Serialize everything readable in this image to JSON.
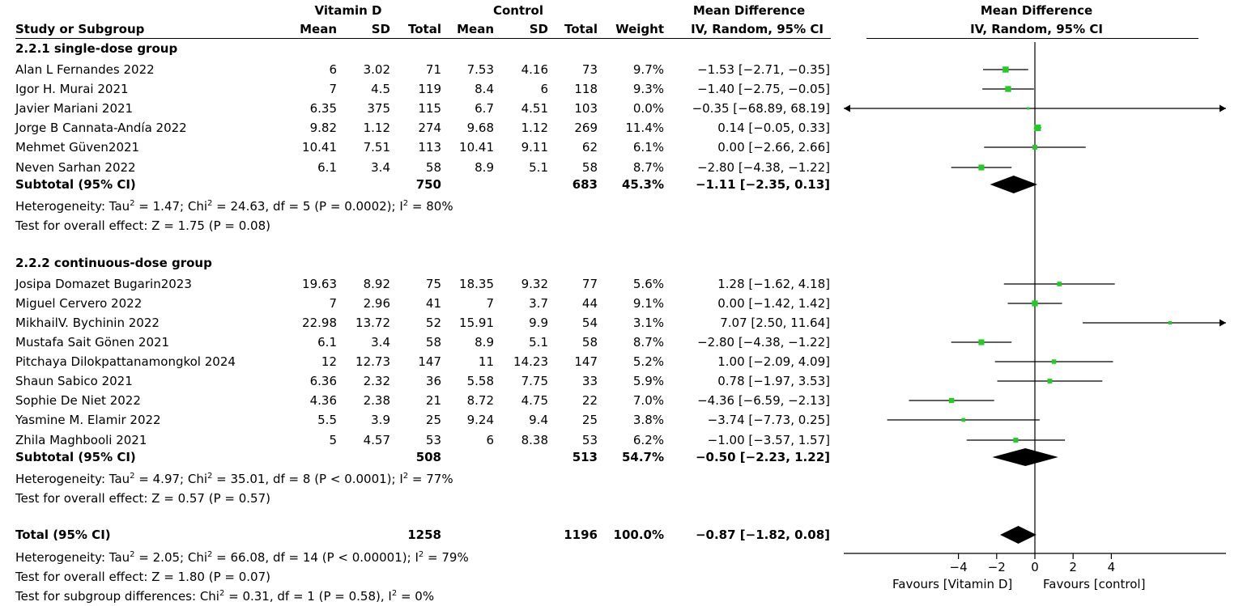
{
  "header": {
    "vitd": "Vitamin D",
    "control": "Control",
    "md_top": "Mean Difference",
    "md_bottom": "IV, Random, 95% CI",
    "plot_top": "Mean Difference",
    "plot_bottom": "IV, Random, 95% CI",
    "study": "Study or Subgroup",
    "mean1": "Mean",
    "sd1": "SD",
    "total1": "Total",
    "mean2": "Mean",
    "sd2": "SD",
    "total2": "Total",
    "weight": "Weight"
  },
  "groups": [
    {
      "title": "2.2.1 single-dose group",
      "studies": [
        {
          "name": "Alan L Fernandes 2022",
          "m1": "6",
          "sd1": "3.02",
          "n1": "71",
          "m2": "7.53",
          "sd2": "4.16",
          "n2": "73",
          "w": "9.7%",
          "ci": "−1.53 [−2.71, −0.35]"
        },
        {
          "name": "Igor H. Murai 2021",
          "m1": "7",
          "sd1": "4.5",
          "n1": "119",
          "m2": "8.4",
          "sd2": "6",
          "n2": "118",
          "w": "9.3%",
          "ci": "−1.40 [−2.75, −0.05]"
        },
        {
          "name": "Javier Mariani 2021",
          "m1": "6.35",
          "sd1": "375",
          "n1": "115",
          "m2": "6.7",
          "sd2": "4.51",
          "n2": "103",
          "w": "0.0%",
          "ci": "−0.35 [−68.89, 68.19]"
        },
        {
          "name": "Jorge B Cannata-Andía 2022",
          "m1": "9.82",
          "sd1": "1.12",
          "n1": "274",
          "m2": "9.68",
          "sd2": "1.12",
          "n2": "269",
          "w": "11.4%",
          "ci": "0.14 [−0.05, 0.33]"
        },
        {
          "name": "Mehmet Güven2021",
          "m1": "10.41",
          "sd1": "7.51",
          "n1": "113",
          "m2": "10.41",
          "sd2": "9.11",
          "n2": "62",
          "w": "6.1%",
          "ci": "0.00 [−2.66, 2.66]"
        },
        {
          "name": "Neven Sarhan 2022",
          "m1": "6.1",
          "sd1": "3.4",
          "n1": "58",
          "m2": "8.9",
          "sd2": "5.1",
          "n2": "58",
          "w": "8.7%",
          "ci": "−2.80 [−4.38, −1.22]"
        }
      ],
      "subtotal": {
        "label": "Subtotal (95% CI)",
        "n1": "750",
        "n2": "683",
        "w": "45.3%",
        "ci": "−1.11 [−2.35, 0.13]"
      },
      "het_pre": "Heterogeneity: Tau",
      "het_mid": " = 1.47; Chi",
      "het_mid2": " = 24.63, df = 5 (P = 0.0002); I",
      "het_end": " = 80%",
      "overall": "Test for overall effect: Z = 1.75 (P = 0.08)"
    },
    {
      "title": "2.2.2 continuous-dose group",
      "studies": [
        {
          "name": "Josipa Domazet Bugarin2023",
          "m1": "19.63",
          "sd1": "8.92",
          "n1": "75",
          "m2": "18.35",
          "sd2": "9.32",
          "n2": "77",
          "w": "5.6%",
          "ci": "1.28 [−1.62, 4.18]"
        },
        {
          "name": "Miguel Cervero 2022",
          "m1": "7",
          "sd1": "2.96",
          "n1": "41",
          "m2": "7",
          "sd2": "3.7",
          "n2": "44",
          "w": "9.1%",
          "ci": "0.00 [−1.42, 1.42]"
        },
        {
          "name": "MikhailV. Bychinin 2022",
          "m1": "22.98",
          "sd1": "13.72",
          "n1": "52",
          "m2": "15.91",
          "sd2": "9.9",
          "n2": "54",
          "w": "3.1%",
          "ci": "7.07 [2.50, 11.64]"
        },
        {
          "name": "Mustafa Sait Gönen 2021",
          "m1": "6.1",
          "sd1": "3.4",
          "n1": "58",
          "m2": "8.9",
          "sd2": "5.1",
          "n2": "58",
          "w": "8.7%",
          "ci": "−2.80 [−4.38, −1.22]"
        },
        {
          "name": "Pitchaya Dilokpattanamongkol 2024",
          "m1": "12",
          "sd1": "12.73",
          "n1": "147",
          "m2": "11",
          "sd2": "14.23",
          "n2": "147",
          "w": "5.2%",
          "ci": "1.00 [−2.09, 4.09]"
        },
        {
          "name": "Shaun Sabico 2021",
          "m1": "6.36",
          "sd1": "2.32",
          "n1": "36",
          "m2": "5.58",
          "sd2": "7.75",
          "n2": "33",
          "w": "5.9%",
          "ci": "0.78 [−1.97, 3.53]"
        },
        {
          "name": "Sophie De Niet 2022",
          "m1": "4.36",
          "sd1": "2.38",
          "n1": "21",
          "m2": "8.72",
          "sd2": "4.75",
          "n2": "22",
          "w": "7.0%",
          "ci": "−4.36 [−6.59, −2.13]"
        },
        {
          "name": "Yasmine M. Elamir 2022",
          "m1": "5.5",
          "sd1": "3.9",
          "n1": "25",
          "m2": "9.24",
          "sd2": "9.4",
          "n2": "25",
          "w": "3.8%",
          "ci": "−3.74 [−7.73, 0.25]"
        },
        {
          "name": "Zhila Maghbooli 2021",
          "m1": "5",
          "sd1": "4.57",
          "n1": "53",
          "m2": "6",
          "sd2": "8.38",
          "n2": "53",
          "w": "6.2%",
          "ci": "−1.00 [−3.57, 1.57]"
        }
      ],
      "subtotal": {
        "label": "Subtotal (95% CI)",
        "n1": "508",
        "n2": "513",
        "w": "54.7%",
        "ci": "−0.50 [−2.23, 1.22]"
      },
      "het_pre": "Heterogeneity: Tau",
      "het_mid": " = 4.97; Chi",
      "het_mid2": " = 35.01, df = 8 (P < 0.0001); I",
      "het_end": " = 77%",
      "overall": "Test for overall effect: Z = 0.57 (P = 0.57)"
    }
  ],
  "total": {
    "label": "Total (95% CI)",
    "n1": "1258",
    "n2": "1196",
    "w": "100.0%",
    "ci": "−0.87 [−1.82, 0.08]"
  },
  "total_het": {
    "pre": "Heterogeneity: Tau",
    "mid": " = 2.05; Chi",
    "mid2": " = 66.08, df = 14 (P < 0.00001); I",
    "end": " = 79%"
  },
  "total_overall": "Test for overall effect: Z = 1.80 (P = 0.07)",
  "subgroup_diff": {
    "pre": "Test for subgroup differences: Chi",
    "mid": " = 0.31, df = 1 (P = 0.58), I",
    "end": " = 0%"
  },
  "sup2": "2",
  "axis_labels": {
    "left": "Favours [Vitamin D]",
    "right": "Favours [control]"
  },
  "colors": {
    "square": "#22cc22",
    "line": "#000000"
  },
  "chart_data": {
    "type": "forest",
    "title": "Mean Difference IV, Random, 95% CI",
    "xlim": [
      -10,
      10
    ],
    "ticks": [
      -4,
      -2,
      0,
      2,
      4
    ],
    "tick_labels": [
      "−4",
      "−2",
      "0",
      "2",
      "4"
    ],
    "studies": [
      {
        "group": 0,
        "index": 0,
        "md": -1.53,
        "lo": -2.71,
        "hi": -0.35,
        "weight": 9.7
      },
      {
        "group": 0,
        "index": 1,
        "md": -1.4,
        "lo": -2.75,
        "hi": -0.05,
        "weight": 9.3
      },
      {
        "group": 0,
        "index": 2,
        "md": -0.35,
        "lo": -68.89,
        "hi": 68.19,
        "weight": 0.0
      },
      {
        "group": 0,
        "index": 3,
        "md": 0.14,
        "lo": -0.05,
        "hi": 0.33,
        "weight": 11.4
      },
      {
        "group": 0,
        "index": 4,
        "md": 0.0,
        "lo": -2.66,
        "hi": 2.66,
        "weight": 6.1
      },
      {
        "group": 0,
        "index": 5,
        "md": -2.8,
        "lo": -4.38,
        "hi": -1.22,
        "weight": 8.7
      },
      {
        "group": 1,
        "index": 0,
        "md": 1.28,
        "lo": -1.62,
        "hi": 4.18,
        "weight": 5.6
      },
      {
        "group": 1,
        "index": 1,
        "md": 0.0,
        "lo": -1.42,
        "hi": 1.42,
        "weight": 9.1
      },
      {
        "group": 1,
        "index": 2,
        "md": 7.07,
        "lo": 2.5,
        "hi": 11.64,
        "weight": 3.1
      },
      {
        "group": 1,
        "index": 3,
        "md": -2.8,
        "lo": -4.38,
        "hi": -1.22,
        "weight": 8.7
      },
      {
        "group": 1,
        "index": 4,
        "md": 1.0,
        "lo": -2.09,
        "hi": 4.09,
        "weight": 5.2
      },
      {
        "group": 1,
        "index": 5,
        "md": 0.78,
        "lo": -1.97,
        "hi": 3.53,
        "weight": 5.9
      },
      {
        "group": 1,
        "index": 6,
        "md": -4.36,
        "lo": -6.59,
        "hi": -2.13,
        "weight": 7.0
      },
      {
        "group": 1,
        "index": 7,
        "md": -3.74,
        "lo": -7.73,
        "hi": 0.25,
        "weight": 3.8
      },
      {
        "group": 1,
        "index": 8,
        "md": -1.0,
        "lo": -3.57,
        "hi": 1.57,
        "weight": 6.2
      }
    ],
    "diamonds": [
      {
        "label": "Subtotal 2.2.1",
        "md": -1.11,
        "lo": -2.35,
        "hi": 0.13
      },
      {
        "label": "Subtotal 2.2.2",
        "md": -0.5,
        "lo": -2.23,
        "hi": 1.22
      },
      {
        "label": "Total",
        "md": -0.87,
        "lo": -1.82,
        "hi": 0.08
      }
    ]
  }
}
